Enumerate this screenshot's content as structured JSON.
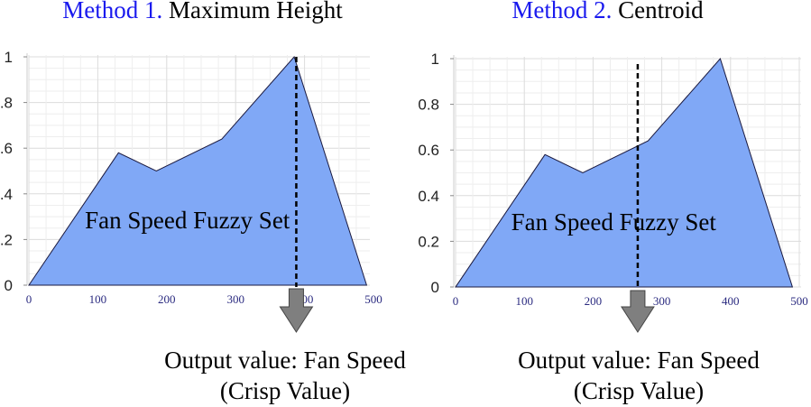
{
  "panels": [
    {
      "method": "Method 1.",
      "title": "Maximum Height",
      "set_label": "Fan Speed Fuzzy Set",
      "output_line1": "Output value: Fan Speed",
      "output_line2": "(Crisp Value)",
      "crisp_x": 388
    },
    {
      "method": "Method 2.",
      "title": "Centroid",
      "set_label": "Fan Speed Fuzzy Set",
      "output_line1": "Output value: Fan Speed",
      "output_line2": "(Crisp Value)",
      "crisp_x": 265
    }
  ],
  "chart_data": {
    "type": "area",
    "x": [
      0,
      130,
      185,
      280,
      385,
      490
    ],
    "y": [
      0,
      0.58,
      0.5,
      0.64,
      1,
      0
    ],
    "xticks": [
      "0",
      "100",
      "200",
      "300",
      "400",
      "500"
    ],
    "yticks": [
      "0",
      "0.2",
      "0.4",
      "0.6",
      "0.8",
      "1"
    ],
    "xlim": [
      0,
      500
    ],
    "ylim": [
      0,
      1
    ],
    "grid": true,
    "fill_color": "#80a8f6",
    "outline_color": "#1a1a40",
    "method_color": "#1a1aee",
    "arrow_color": "#7f7f7f"
  }
}
